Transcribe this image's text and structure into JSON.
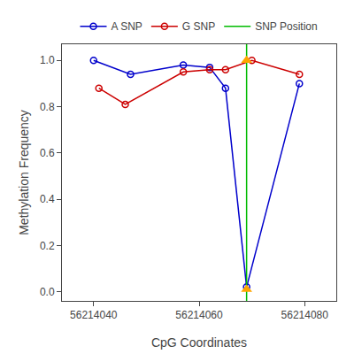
{
  "chart_data": {
    "type": "line",
    "xlabel": "CpG Coordinates",
    "ylabel": "Methylation Frequency",
    "series": [
      {
        "name": "A SNP",
        "color": "#0000cc",
        "marker": "circle-open",
        "x": [
          56214040,
          56214047,
          56214057,
          56214062,
          56214065,
          56214069,
          56214079
        ],
        "values": [
          1.0,
          0.94,
          0.98,
          0.97,
          0.88,
          0.02,
          0.9
        ]
      },
      {
        "name": "G SNP",
        "color": "#cc0000",
        "marker": "circle-open",
        "x": [
          56214041,
          56214046,
          56214057,
          56214062,
          56214065,
          56214070,
          56214079
        ],
        "values": [
          0.88,
          0.81,
          0.95,
          0.96,
          0.96,
          1.0,
          0.94
        ]
      },
      {
        "name": "SNP Position",
        "type": "vline",
        "color": "#00bb00",
        "x": [
          56214069
        ]
      },
      {
        "type": "scatter",
        "marker": "triangle-up",
        "color": "#FFA500",
        "x": [
          56214069,
          56214069
        ],
        "values": [
          1.0,
          0.01
        ]
      }
    ],
    "xlim": [
      56214034,
      56214086
    ],
    "ylim": [
      -0.04,
      1.07
    ],
    "xticks": [
      56214040,
      56214060,
      56214080
    ],
    "yticks": [
      {
        "value": 0,
        "label": "0.0"
      },
      0.2,
      0.4,
      0.6,
      0.8,
      {
        "value": 1,
        "label": "1.0"
      }
    ],
    "grid": false,
    "legend": "top"
  }
}
